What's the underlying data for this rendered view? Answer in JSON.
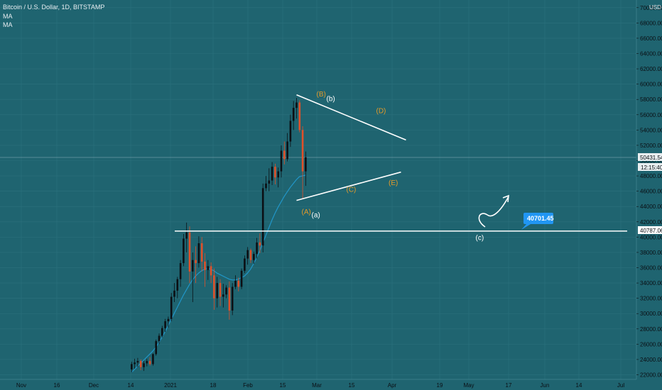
{
  "header": {
    "symbol_line": "Bitcoin / U.S. Dollar, 1D, BITSTAMP",
    "indicators": [
      "MA",
      "MA"
    ],
    "currency": "USD"
  },
  "colors": {
    "background": "#1f6470",
    "bull": "#0b0f14",
    "bear": "#e0512a",
    "ma": "#2196c8",
    "annotation_orange": "#e39b2a",
    "price_tag": "#2196f3"
  },
  "chart_data": {
    "type": "candlestick",
    "x_tick_labels": [
      "Nov",
      "16",
      "Dec",
      "14",
      "2021",
      "18",
      "Feb",
      "15",
      "Mar",
      "15",
      "Apr",
      "19",
      "May",
      "17",
      "Jun",
      "14",
      "Jul"
    ],
    "y_tick_labels": [
      "22000.00",
      "24000.00",
      "26000.00",
      "28000.00",
      "30000.00",
      "32000.00",
      "34000.00",
      "36000.00",
      "38000.00",
      "40000.00",
      "42000.00",
      "44000.00",
      "46000.00",
      "48000.00",
      "50000.00",
      "52000.00",
      "54000.00",
      "56000.00",
      "58000.00",
      "60000.00",
      "62000.00",
      "64000.00",
      "66000.00",
      "68000.00",
      "70000.00"
    ],
    "ylim": [
      21400,
      71000
    ],
    "candles": [
      [
        22700,
        23700,
        22300,
        23400
      ],
      [
        23400,
        24100,
        22800,
        23600
      ],
      [
        23600,
        24200,
        23000,
        23800
      ],
      [
        23800,
        24000,
        22600,
        23000
      ],
      [
        23000,
        23800,
        22500,
        23500
      ],
      [
        23500,
        24100,
        23100,
        23800
      ],
      [
        23800,
        24300,
        23200,
        23400
      ],
      [
        23400,
        24800,
        23200,
        24700
      ],
      [
        24700,
        26600,
        24500,
        26400
      ],
      [
        26400,
        27400,
        26000,
        27100
      ],
      [
        27100,
        28400,
        26900,
        28100
      ],
      [
        28100,
        29300,
        27600,
        29000
      ],
      [
        29000,
        29600,
        28200,
        29300
      ],
      [
        29300,
        32700,
        29000,
        32200
      ],
      [
        32200,
        34000,
        31500,
        33000
      ],
      [
        33000,
        34800,
        32000,
        34500
      ],
      [
        34500,
        37000,
        33500,
        36600
      ],
      [
        36600,
        40400,
        36200,
        39800
      ],
      [
        39800,
        41900,
        38000,
        40600
      ],
      [
        40600,
        41400,
        34000,
        35500
      ],
      [
        35500,
        38000,
        31500,
        37000
      ],
      [
        37000,
        38800,
        34000,
        36600
      ],
      [
        36600,
        40100,
        36000,
        39200
      ],
      [
        39200,
        40000,
        35500,
        36800
      ],
      [
        36800,
        37900,
        33500,
        35700
      ],
      [
        35700,
        37000,
        34400,
        36200
      ],
      [
        36200,
        36700,
        34000,
        35000
      ],
      [
        35000,
        35900,
        30500,
        32000
      ],
      [
        32000,
        34800,
        30800,
        34000
      ],
      [
        34000,
        34500,
        31000,
        32200
      ],
      [
        32200,
        33900,
        30800,
        32500
      ],
      [
        32500,
        33700,
        32000,
        33400
      ],
      [
        33400,
        34200,
        29200,
        30400
      ],
      [
        30400,
        34000,
        29800,
        33500
      ],
      [
        33500,
        35000,
        33200,
        34300
      ],
      [
        34300,
        34700,
        32900,
        33500
      ],
      [
        33500,
        35900,
        33200,
        35600
      ],
      [
        35600,
        37600,
        35300,
        37200
      ],
      [
        37200,
        38700,
        36400,
        38300
      ],
      [
        38300,
        38500,
        36600,
        37000
      ],
      [
        37000,
        38100,
        36500,
        37800
      ],
      [
        37800,
        39900,
        37200,
        39300
      ],
      [
        39300,
        40500,
        37900,
        38900
      ],
      [
        38900,
        47000,
        38000,
        46400
      ],
      [
        46400,
        48000,
        46000,
        47000
      ],
      [
        47000,
        49000,
        46000,
        47400
      ],
      [
        47400,
        49800,
        46800,
        49200
      ],
      [
        49200,
        49600,
        46900,
        47800
      ],
      [
        47800,
        49100,
        46500,
        48600
      ],
      [
        48600,
        52000,
        47800,
        51300
      ],
      [
        51300,
        52500,
        49500,
        50200
      ],
      [
        50200,
        53600,
        49900,
        52500
      ],
      [
        52500,
        56000,
        51800,
        55200
      ],
      [
        55200,
        57800,
        54000,
        56900
      ],
      [
        56900,
        58200,
        55500,
        57600
      ],
      [
        57600,
        57900,
        53700,
        54000
      ],
      [
        54000,
        54500,
        45000,
        48600
      ],
      [
        48600,
        51200,
        46700,
        50431
      ]
    ],
    "moving_average": [
      22300,
      22700,
      23100,
      23500,
      23900,
      24300,
      24700,
      25100,
      25600,
      26200,
      26900,
      27600,
      28400,
      29200,
      30000,
      30800,
      31600,
      32400,
      33100,
      33800,
      34400,
      34900,
      35300,
      35600,
      35800,
      35900,
      35800,
      35600,
      35300,
      35100,
      34900,
      34700,
      34500,
      34400,
      34400,
      34500,
      34700,
      34900,
      35300,
      35800,
      36500,
      37300,
      38200,
      39200,
      40200,
      41200,
      42200,
      43100,
      43900,
      44600,
      45300,
      45900,
      46500,
      47000,
      47500,
      47900,
      48000,
      48100
    ],
    "lines": [
      {
        "name": "wedge-upper",
        "from": [
          58.5,
          58600
        ],
        "to": [
          80.5,
          52700
        ]
      },
      {
        "name": "wedge-lower",
        "from": [
          58.5,
          44800
        ],
        "to": [
          79.5,
          48500
        ]
      },
      {
        "name": "support",
        "from": [
          34,
          40787
        ],
        "to": [
          125,
          40787
        ]
      }
    ],
    "current_price": "50431.54",
    "countdown": "12:15:40",
    "support_price": "40787.06",
    "target_tag": "40701.45",
    "wave_labels": [
      {
        "text": "(B)",
        "style": "orange",
        "x": 62.5,
        "y": 58400
      },
      {
        "text": "(b)",
        "style": "white",
        "x": 64.5,
        "y": 57800
      },
      {
        "text": "(D)",
        "style": "orange",
        "x": 74.5,
        "y": 56200
      },
      {
        "text": "(C)",
        "style": "orange",
        "x": 68.5,
        "y": 45900
      },
      {
        "text": "(E)",
        "style": "orange",
        "x": 77,
        "y": 46800
      },
      {
        "text": "(A)",
        "style": "orange",
        "x": 59.5,
        "y": 43000
      },
      {
        "text": "(a)",
        "style": "white",
        "x": 61.5,
        "y": 42600
      },
      {
        "text": "(c)",
        "style": "white",
        "x": 94.5,
        "y": 39600
      }
    ]
  }
}
